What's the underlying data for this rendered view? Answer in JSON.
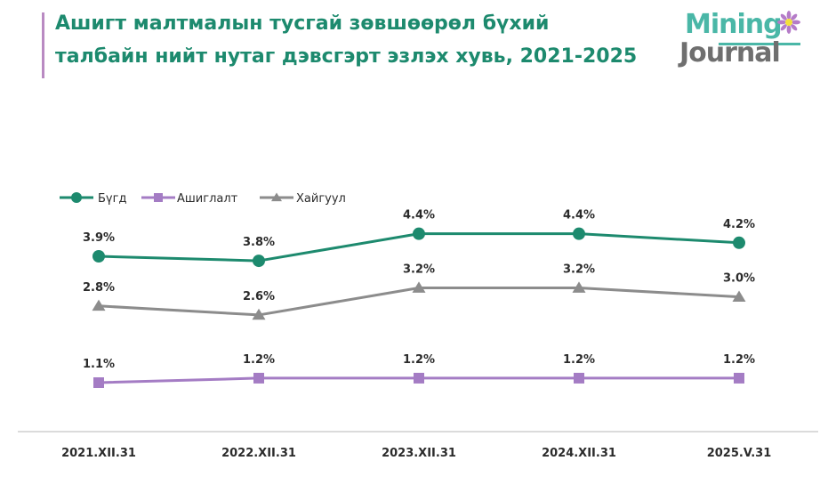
{
  "title": {
    "line1": "Ашигт малтмалын тусгай зөвшөөрөл бүхий",
    "line2": "талбайн нийт нутаг дэвсгэрт эзлэх хувь, 2021-2025"
  },
  "logo": {
    "word1": "Mining",
    "word2": "Journal"
  },
  "colors": {
    "title": "#1d8a6e",
    "accent_bar": "#b98ac2",
    "axis": "#cfcfcf"
  },
  "chart_data": {
    "type": "line",
    "categories": [
      "2021.XII.31",
      "2022.XII.31",
      "2023.XII.31",
      "2024.XII.31",
      "2025.V.31"
    ],
    "unit": "%",
    "legend_position": "top-left",
    "grid": false,
    "ylim": [
      0,
      5
    ],
    "series": [
      {
        "name": "Бүгд",
        "values": [
          3.9,
          3.8,
          4.4,
          4.4,
          4.2
        ],
        "labels": [
          "3.9%",
          "3.8%",
          "4.4%",
          "4.4%",
          "4.2%"
        ],
        "color": "#1d8a6e",
        "marker": "circle"
      },
      {
        "name": "Ашиглалт",
        "values": [
          1.1,
          1.2,
          1.2,
          1.2,
          1.2
        ],
        "labels": [
          "1.1%",
          "1.2%",
          "1.2%",
          "1.2%",
          "1.2%"
        ],
        "color": "#a47cc4",
        "marker": "square"
      },
      {
        "name": "Хайгуул",
        "values": [
          2.8,
          2.6,
          3.2,
          3.2,
          3.0
        ],
        "labels": [
          "2.8%",
          "2.6%",
          "3.2%",
          "3.2%",
          "3.0%"
        ],
        "color": "#8c8c8c",
        "marker": "triangle"
      }
    ]
  }
}
